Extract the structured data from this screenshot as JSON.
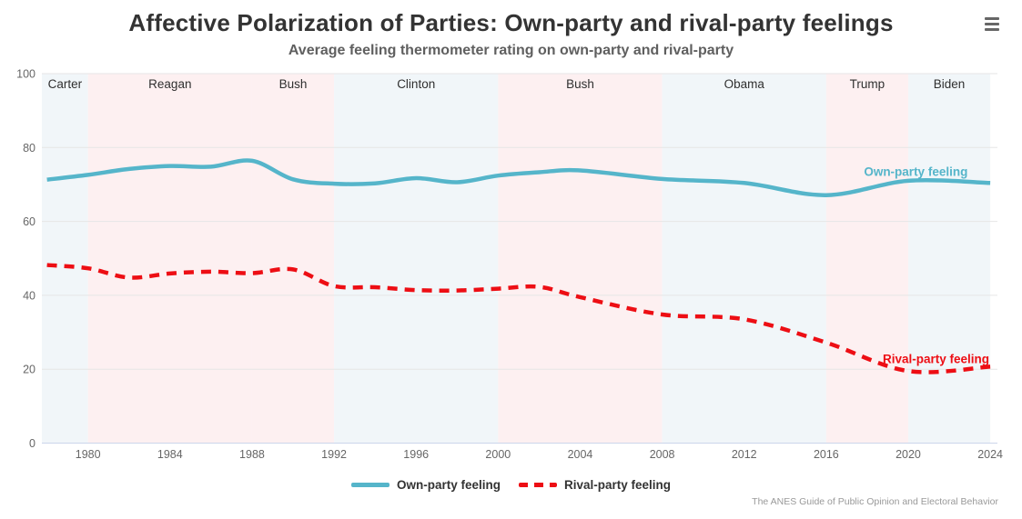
{
  "header": {
    "title": "Affective Polarization of Parties: Own-party and rival-party feelings",
    "subtitle": "Average feeling thermometer rating on own-party and rival-party",
    "menu_icon": "hamburger-menu"
  },
  "legend": {
    "items": [
      {
        "label": "Own-party feeling"
      },
      {
        "label": "Rival-party feeling"
      }
    ]
  },
  "caption": "The ANES Guide of Public Opinion and Electoral Behavior",
  "chart_data": {
    "type": "line",
    "title": "Affective Polarization of Parties: Own-party and rival-party feelings",
    "subtitle": "Average feeling thermometer rating on own-party and rival-party",
    "xlabel": "",
    "ylabel": "",
    "x": [
      1978,
      1980,
      1982,
      1984,
      1986,
      1988,
      1990,
      1992,
      1994,
      1996,
      1998,
      2000,
      2002,
      2004,
      2008,
      2012,
      2016,
      2020,
      2024
    ],
    "series": [
      {
        "name": "Own-party feeling",
        "color": "#55b5ca",
        "dash": "solid",
        "values": [
          71.3,
          72.6,
          74.2,
          75.0,
          74.8,
          76.4,
          71.4,
          70.2,
          70.3,
          71.7,
          70.6,
          72.4,
          73.3,
          73.8,
          71.5,
          70.4,
          67.1,
          71.0,
          70.4
        ]
      },
      {
        "name": "Rival-party feeling",
        "color": "#ed0e14",
        "dash": "dashed",
        "values": [
          48.2,
          47.3,
          44.8,
          45.9,
          46.4,
          46.0,
          47.0,
          42.5,
          42.2,
          41.4,
          41.3,
          41.8,
          42.3,
          39.5,
          34.8,
          33.5,
          27.2,
          19.5,
          20.7
        ]
      }
    ],
    "ylim": [
      0,
      100
    ],
    "yticks": [
      0,
      20,
      40,
      60,
      80,
      100
    ],
    "xticks": [
      1980,
      1984,
      1988,
      1992,
      1996,
      2000,
      2004,
      2008,
      2012,
      2016,
      2020,
      2024
    ],
    "x_axis_range": [
      1977.75,
      2024.35
    ],
    "grid": "horizontal-only",
    "legend_position": "bottom-center",
    "grid_color": "#e6e6e6",
    "axis_line_color": "#ccd6eb",
    "tick_label_color": "#666666",
    "band_label_color": "#2f2f2f",
    "band_colors": {
      "dem": "#f1f6f9",
      "rep": "#fdf0f1"
    },
    "plot_bands": [
      {
        "label": "Carter",
        "from": 1977.75,
        "to": 1980,
        "party": "dem"
      },
      {
        "label": "Reagan",
        "from": 1980,
        "to": 1988,
        "party": "rep"
      },
      {
        "label": "Bush",
        "from": 1988,
        "to": 1992,
        "party": "rep"
      },
      {
        "label": "Clinton",
        "from": 1992,
        "to": 2000,
        "party": "dem"
      },
      {
        "label": "Bush",
        "from": 2000,
        "to": 2008,
        "party": "rep"
      },
      {
        "label": "Obama",
        "from": 2008,
        "to": 2016,
        "party": "dem"
      },
      {
        "label": "Trump",
        "from": 2016,
        "to": 2020,
        "party": "rep"
      },
      {
        "label": "Biden",
        "from": 2020,
        "to": 2024,
        "party": "dem"
      }
    ],
    "series_labels": [
      {
        "text": "Own-party feeling",
        "year": 2022.9,
        "value": 72.3,
        "color": "#55b5ca"
      },
      {
        "text": "Rival-party feeling",
        "year": 2023.95,
        "value": 21.6,
        "color": "#ed0e14"
      }
    ]
  }
}
